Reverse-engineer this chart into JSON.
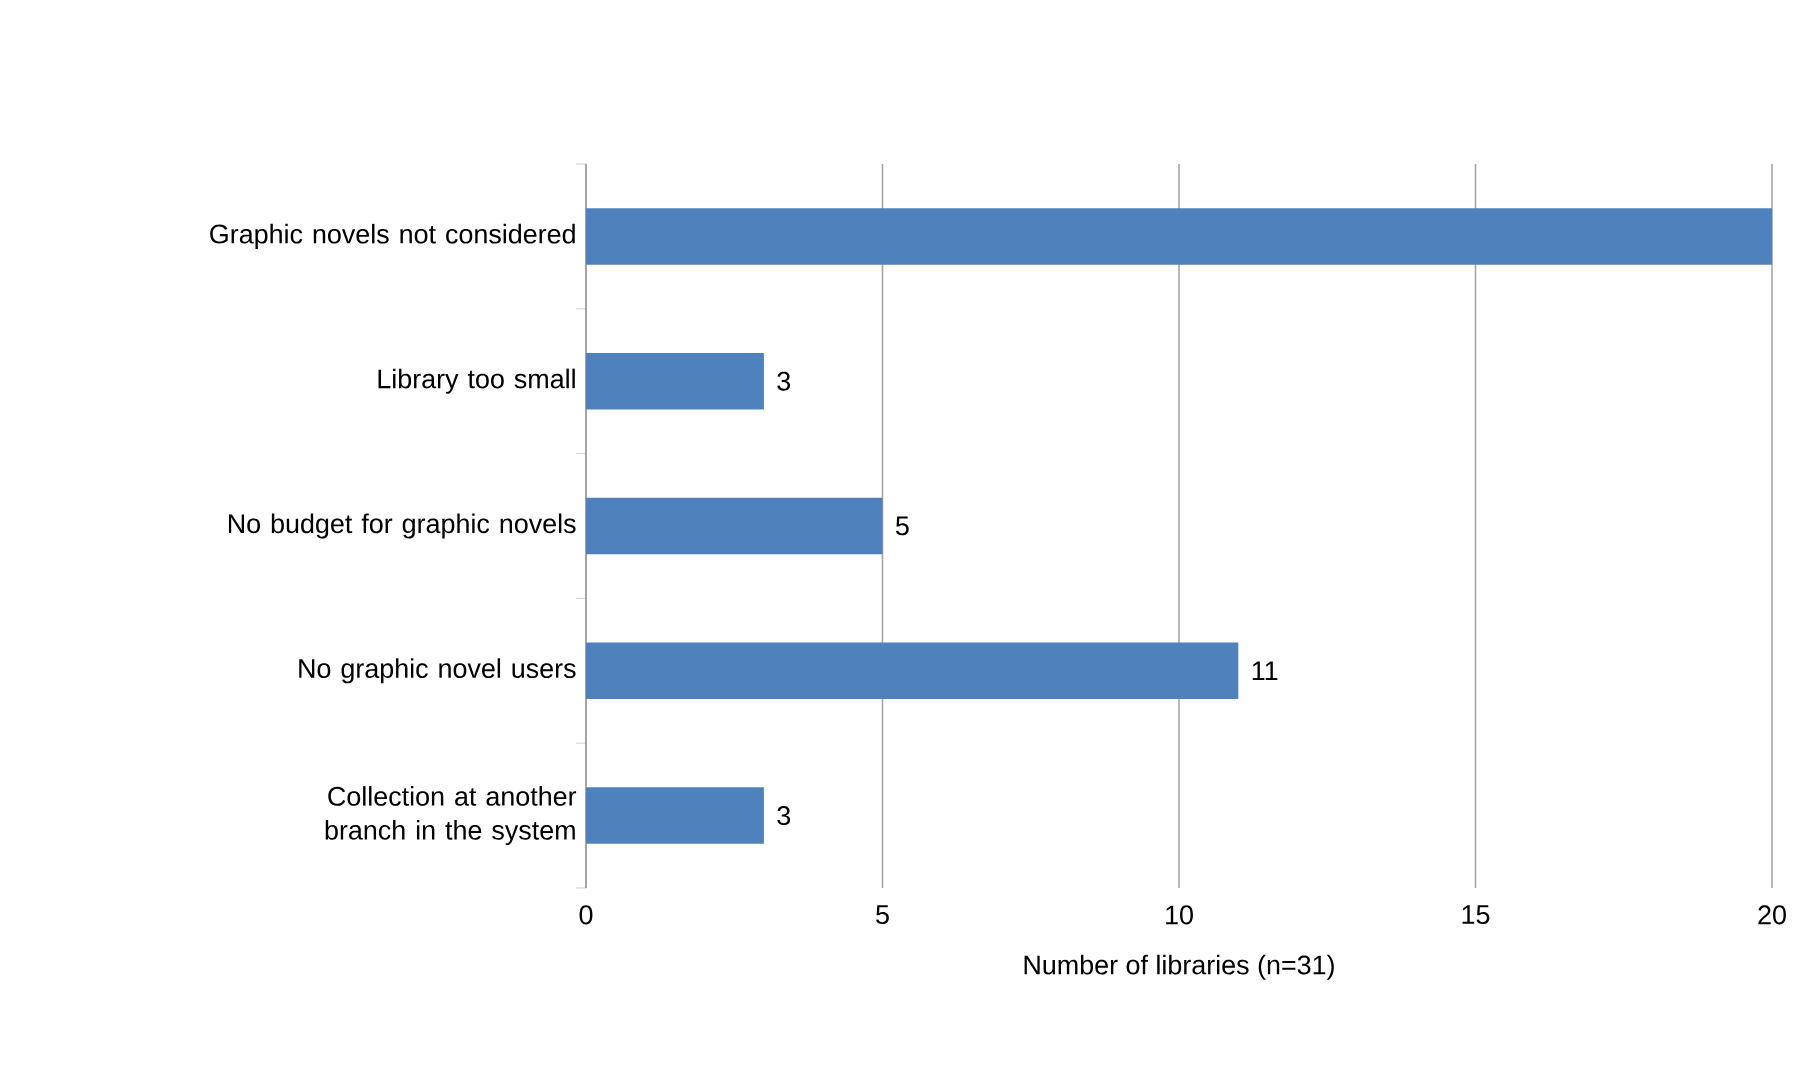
{
  "chart_data": {
    "type": "bar",
    "orientation": "horizontal",
    "categories": [
      "Graphic novels not considered",
      "Library too small",
      "No budget for graphic novels",
      "No graphic novel users",
      "Collection at another branch in the system"
    ],
    "values": [
      20,
      3,
      5,
      11,
      3
    ],
    "value_labels": [
      null,
      "3",
      "5",
      "11",
      "3"
    ],
    "color": "#4f81bd",
    "xlabel": "Number of libraries (n=31)",
    "xlim": [
      0,
      20
    ],
    "xticks": [
      0,
      5,
      10,
      15,
      20
    ],
    "grid": "x"
  }
}
